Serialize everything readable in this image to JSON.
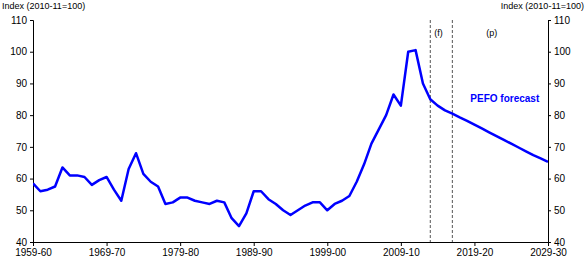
{
  "chart_data": {
    "type": "line",
    "y_label": "Index (2010-11=100)",
    "y2_label": "Index (2010-11=100)",
    "x": [
      1959,
      1960,
      1961,
      1962,
      1963,
      1964,
      1965,
      1966,
      1967,
      1968,
      1969,
      1970,
      1971,
      1972,
      1973,
      1974,
      1975,
      1976,
      1977,
      1978,
      1979,
      1980,
      1981,
      1982,
      1983,
      1984,
      1985,
      1986,
      1987,
      1988,
      1989,
      1990,
      1991,
      1992,
      1993,
      1994,
      1995,
      1996,
      1997,
      1998,
      1999,
      2000,
      2001,
      2002,
      2003,
      2004,
      2005,
      2006,
      2007,
      2008,
      2009,
      2010,
      2011,
      2012,
      2013,
      2014,
      2015,
      2016,
      2017,
      2018,
      2019,
      2020,
      2021,
      2022,
      2023,
      2024,
      2025,
      2026,
      2027,
      2028,
      2029
    ],
    "series": [
      {
        "color": "#0000ff",
        "values": [
          58.5,
          56,
          56.5,
          57.5,
          63.5,
          61,
          61,
          60.5,
          58,
          59.5,
          60.5,
          56.5,
          53,
          63,
          68,
          61.5,
          59,
          57.5,
          52,
          52.5,
          54,
          54,
          53,
          52.5,
          52,
          53,
          52.5,
          47.5,
          45,
          49,
          56,
          56,
          53.5,
          52,
          50,
          48.5,
          50,
          51.5,
          52.5,
          52.5,
          50,
          52,
          53,
          54.5,
          59,
          64.5,
          71,
          75.5,
          80,
          86.5,
          83,
          100,
          100.5,
          90,
          85,
          83,
          81.5,
          80.5,
          79.3,
          78.2,
          77,
          75.8,
          74.6,
          73.4,
          72.2,
          71,
          69.8,
          68.6,
          67.4,
          66.4,
          65.3
        ]
      }
    ],
    "xlim": [
      1959,
      2029
    ],
    "xticks": [
      {
        "value": 1959,
        "label": "1959-60"
      },
      {
        "value": 1969,
        "label": "1969-70"
      },
      {
        "value": 1979,
        "label": "1979-80"
      },
      {
        "value": 1989,
        "label": "1989-90"
      },
      {
        "value": 1999,
        "label": "1999-00"
      },
      {
        "value": 2009,
        "label": "2009-10"
      },
      {
        "value": 2019,
        "label": "2019-20"
      },
      {
        "value": 2029,
        "label": "2029-30"
      }
    ],
    "ylim": [
      40,
      110
    ],
    "yticks": [
      40,
      50,
      60,
      70,
      80,
      90,
      100,
      110
    ],
    "y2lim": [
      40,
      110
    ],
    "y2ticks": [
      40,
      50,
      60,
      70,
      80,
      90,
      100,
      110
    ],
    "vlines": [
      {
        "x": 2013,
        "label": "(f)"
      },
      {
        "x": 2016,
        "label": "(p)"
      }
    ],
    "annotations": [
      "PEFO forecast"
    ],
    "grid": false
  }
}
